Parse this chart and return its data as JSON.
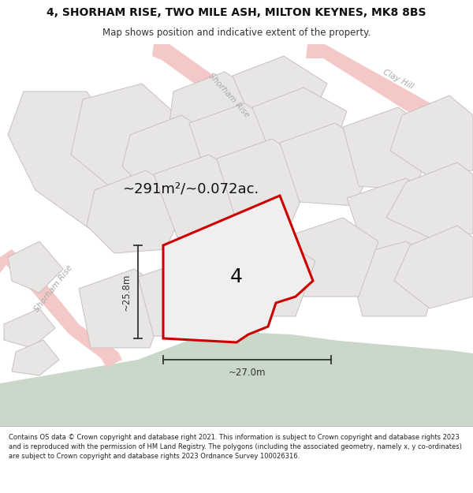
{
  "title_line1": "4, SHORHAM RISE, TWO MILE ASH, MILTON KEYNES, MK8 8BS",
  "title_line2": "Map shows position and indicative extent of the property.",
  "area_text": "~291m²/~0.072ac.",
  "label_number": "4",
  "dim_vertical": "~25.8m",
  "dim_horizontal": "~27.0m",
  "footer_text": "Contains OS data © Crown copyright and database right 2021. This information is subject to Crown copyright and database rights 2023 and is reproduced with the permission of HM Land Registry. The polygons (including the associated geometry, namely x, y co-ordinates) are subject to Crown copyright and database rights 2023 Ordnance Survey 100026316.",
  "map_bg": "#f2f0f0",
  "road_color": "#f5c8c8",
  "road_edge": "#f0b8b8",
  "parcel_fill": "#e8e5e5",
  "parcel_edge": "#c8c0c0",
  "highlight_fill": "#f0eeee",
  "highlight_edge": "#cc0000",
  "green_fill": "#cad8ca",
  "road_label_color": "#aaaaaa",
  "dim_color": "#333333",
  "text_color": "#111111"
}
